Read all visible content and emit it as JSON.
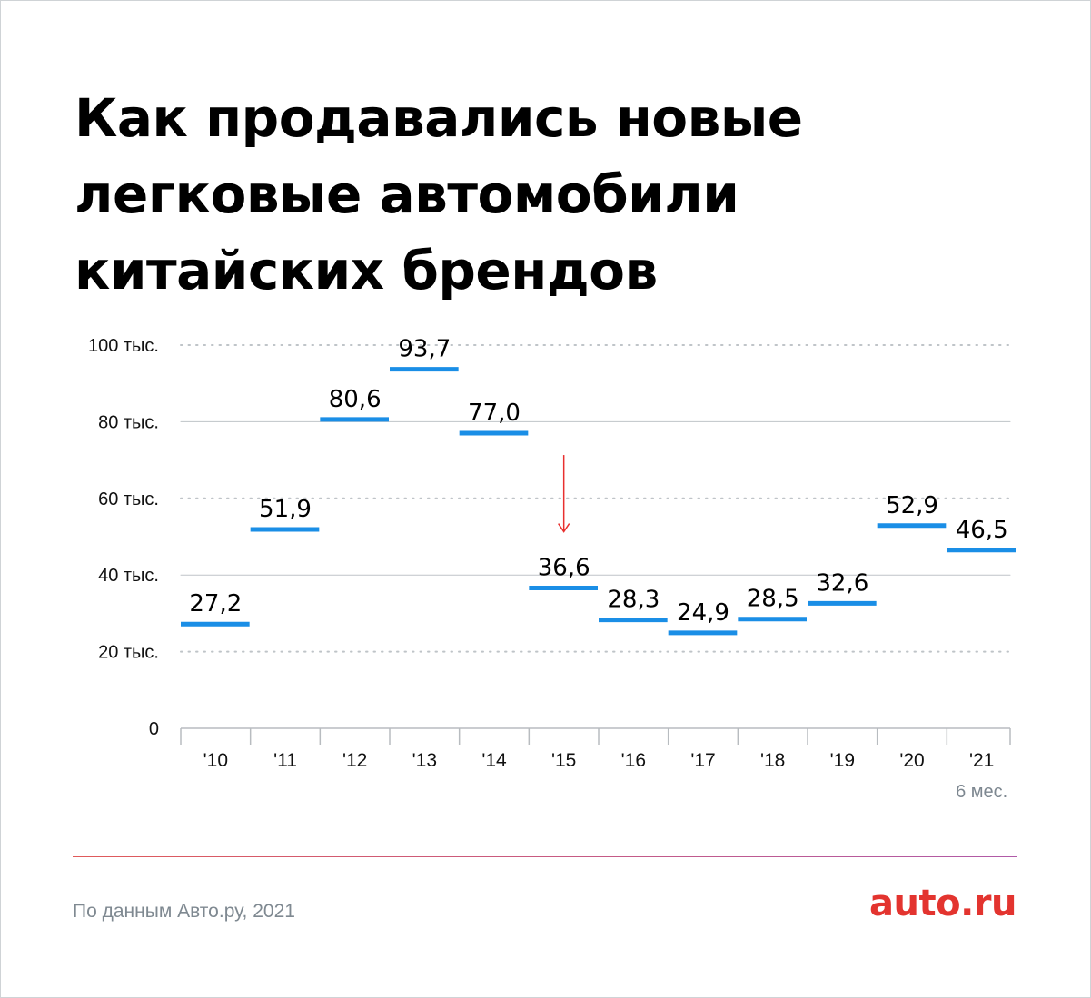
{
  "title_lines": [
    "Как продавались новые",
    "легковые автомобили",
    "китайских брендов"
  ],
  "chart_data": {
    "type": "bar",
    "title": "Как продавались новые легковые автомобили китайских брендов",
    "categories": [
      "'10",
      "'11",
      "'12",
      "'13",
      "'14",
      "'15",
      "'16",
      "'17",
      "'18",
      "'19",
      "'20",
      "'21"
    ],
    "values": [
      27.2,
      51.9,
      80.6,
      93.7,
      77.0,
      36.6,
      28.3,
      24.9,
      28.5,
      32.6,
      52.9,
      46.5
    ],
    "value_labels": [
      "27,2",
      "51,9",
      "80,6",
      "93,7",
      "77,0",
      "36,6",
      "28,3",
      "24,9",
      "28,5",
      "32,6",
      "52,9",
      "46,5"
    ],
    "y_ticks": [
      {
        "value": 0,
        "label": "0"
      },
      {
        "value": 20,
        "label": "20 тыс."
      },
      {
        "value": 40,
        "label": "40 тыс."
      },
      {
        "value": 60,
        "label": "60 тыс."
      },
      {
        "value": 80,
        "label": "80 тыс."
      },
      {
        "value": 100,
        "label": "100 тыс."
      }
    ],
    "ylim": [
      0,
      100
    ],
    "last_category_note": "6 мес.",
    "annotation_arrow_at": "'15",
    "colors": {
      "mark": "#1a8ee6",
      "arrow": "#e8302f",
      "grid": "#bfc4c8",
      "axis": "#b8bcc0"
    }
  },
  "footer": {
    "source": "По данным Авто.ру, 2021",
    "logo": "auto.ru"
  }
}
